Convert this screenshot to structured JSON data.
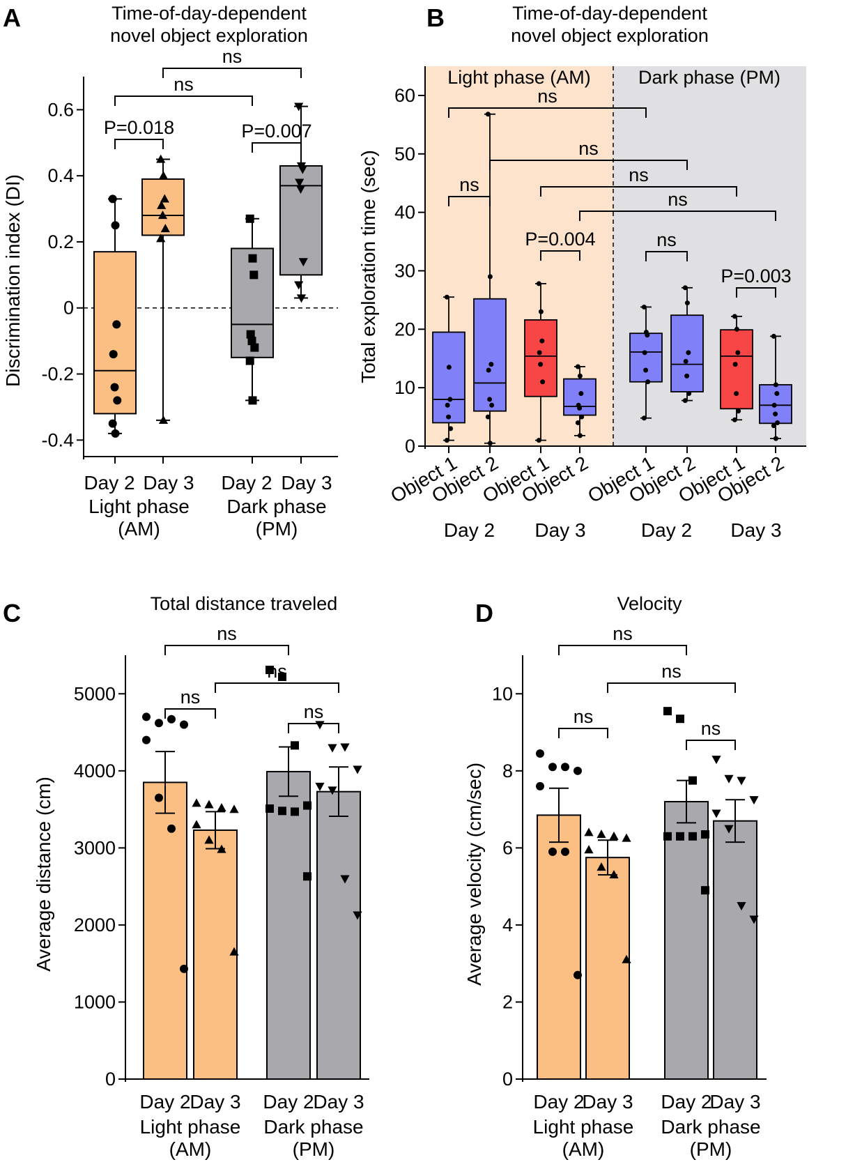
{
  "colors": {
    "light": "#fbbf83",
    "dark": "#a9a9ad",
    "object1_B": "#f84545",
    "object2_B": "#8080f8",
    "bg_light": "#fde3cc",
    "bg_dark": "#e0dfe1"
  },
  "chart_data": [
    {
      "panel": "A",
      "type": "box",
      "title": "Time-of-day-dependent novel object exploration",
      "title_lines": [
        "Time-of-day-dependent",
        "novel object exploration"
      ],
      "ylabel": "Discrimination index (DI)",
      "ylim": [
        -0.45,
        0.7
      ],
      "yticks": [
        -0.4,
        -0.2,
        0,
        0.2,
        0.4,
        0.6
      ],
      "ytick_labels": [
        "-0.4",
        "-0.2",
        "0",
        "0.2",
        "0.4",
        "0.6"
      ],
      "reference_line": 0,
      "categories": [
        "Day 2",
        "Day 3",
        "Day 2",
        "Day 3"
      ],
      "groups": [
        {
          "label_lines": [
            "Light phase",
            "(AM)"
          ]
        },
        {
          "label_lines": [
            "Dark phase",
            "(PM)"
          ]
        }
      ],
      "boxes": [
        {
          "category": "Day 2",
          "group": "Light phase (AM)",
          "min": -0.38,
          "q1": -0.32,
          "median": -0.19,
          "q3": 0.17,
          "max": 0.33,
          "marker": "circle",
          "color": "light",
          "points": [
            0.33,
            0.25,
            -0.05,
            -0.14,
            -0.24,
            -0.28,
            -0.35,
            -0.38
          ]
        },
        {
          "category": "Day 3",
          "group": "Light phase (AM)",
          "min": -0.34,
          "q1": 0.22,
          "median": 0.28,
          "q3": 0.39,
          "max": 0.45,
          "marker": "triangle-up",
          "color": "light",
          "points": [
            0.45,
            0.4,
            0.33,
            0.31,
            0.28,
            0.24,
            0.21,
            -0.34
          ]
        },
        {
          "category": "Day 2",
          "group": "Dark phase (PM)",
          "min": -0.28,
          "q1": -0.15,
          "median": -0.05,
          "q3": 0.18,
          "max": 0.27,
          "marker": "square",
          "color": "dark",
          "points": [
            0.27,
            0.15,
            0.1,
            -0.08,
            -0.1,
            -0.12,
            -0.16,
            -0.28
          ]
        },
        {
          "category": "Day 3",
          "group": "Dark phase (PM)",
          "min": 0.03,
          "q1": 0.1,
          "median": 0.37,
          "q3": 0.43,
          "max": 0.61,
          "marker": "triangle-down",
          "color": "dark",
          "points": [
            0.61,
            0.43,
            0.42,
            0.38,
            0.36,
            0.14,
            0.07,
            0.03
          ]
        }
      ],
      "annotations": [
        {
          "from": 0,
          "to": 1,
          "text": "P=0.018"
        },
        {
          "from": 2,
          "to": 3,
          "text": "P=0.007"
        },
        {
          "from": 0,
          "to": 2,
          "text": "ns"
        },
        {
          "from": 1,
          "to": 3,
          "text": "ns"
        }
      ]
    },
    {
      "panel": "B",
      "type": "box",
      "title": "Time-of-day-dependent novel object exploration",
      "title_lines": [
        "Time-of-day-dependent",
        "novel object exploration"
      ],
      "ylabel": "Total exploration time (sec)",
      "ylim": [
        0,
        65
      ],
      "yticks": [
        0,
        10,
        20,
        30,
        40,
        50,
        60
      ],
      "ytick_labels": [
        "0",
        "10",
        "20",
        "30",
        "40",
        "50",
        "60"
      ],
      "categories": [
        "Object 1",
        "Object 2",
        "Object 1",
        "Object 2",
        "Object 1",
        "Object 2",
        "Object 1",
        "Object 2"
      ],
      "day_labels": [
        "Day 2",
        "Day 3",
        "Day 2",
        "Day 3"
      ],
      "phase_labels": [
        "Light phase (AM)",
        "Dark phase (PM)"
      ],
      "boxes": [
        {
          "category": "Object 1",
          "day": "Day 2",
          "phase": "Light phase (AM)",
          "min": 1,
          "q1": 4,
          "median": 8,
          "q3": 19.5,
          "max": 25.5,
          "color": "object2_B",
          "points": [
            25.5,
            13.5,
            8,
            7,
            5,
            3,
            1
          ]
        },
        {
          "category": "Object 2",
          "day": "Day 2",
          "phase": "Light phase (AM)",
          "min": 0.5,
          "q1": 6,
          "median": 10.8,
          "q3": 25.2,
          "max": 56.8,
          "color": "object2_B",
          "points": [
            56.8,
            29,
            14,
            13,
            8,
            7,
            5,
            0.5
          ]
        },
        {
          "category": "Object 1",
          "day": "Day 3",
          "phase": "Light phase (AM)",
          "min": 1,
          "q1": 8.5,
          "median": 15.4,
          "q3": 21.6,
          "max": 27.8,
          "color": "object1_B",
          "points": [
            27.8,
            23,
            18,
            16,
            14,
            11,
            1
          ]
        },
        {
          "category": "Object 2",
          "day": "Day 3",
          "phase": "Light phase (AM)",
          "min": 1.8,
          "q1": 5.3,
          "median": 6.8,
          "q3": 11.5,
          "max": 13.6,
          "color": "object2_B",
          "points": [
            13.6,
            12,
            9,
            7,
            6.5,
            5,
            4,
            1.8
          ]
        },
        {
          "category": "Object 1",
          "day": "Day 2",
          "phase": "Dark phase (PM)",
          "min": 4.8,
          "q1": 11,
          "median": 16.1,
          "q3": 19.3,
          "max": 23.8,
          "color": "object2_B",
          "points": [
            23.8,
            19.5,
            19,
            16,
            13,
            11,
            4.8
          ]
        },
        {
          "category": "Object 2",
          "day": "Day 2",
          "phase": "Dark phase (PM)",
          "min": 7.8,
          "q1": 9.3,
          "median": 14,
          "q3": 22.4,
          "max": 27.1,
          "color": "object2_B",
          "points": [
            27.1,
            24.5,
            16,
            14.5,
            12,
            9,
            7.8
          ]
        },
        {
          "category": "Object 1",
          "day": "Day 3",
          "phase": "Dark phase (PM)",
          "min": 4.5,
          "q1": 6.4,
          "median": 15.4,
          "q3": 19.9,
          "max": 22.2,
          "color": "object1_B",
          "points": [
            22.2,
            20,
            16,
            14,
            9,
            6,
            4.5
          ]
        },
        {
          "category": "Object 2",
          "day": "Day 3",
          "phase": "Dark phase (PM)",
          "min": 1.3,
          "q1": 3.9,
          "median": 7,
          "q3": 10.5,
          "max": 18.8,
          "color": "object2_B",
          "points": [
            18.8,
            10.5,
            9,
            7,
            5.5,
            4,
            3.5,
            1.3
          ]
        }
      ],
      "annotations": [
        {
          "from": 0,
          "to": 1,
          "text": "ns"
        },
        {
          "from": 2,
          "to": 3,
          "text": "P=0.004"
        },
        {
          "from": 4,
          "to": 5,
          "text": "ns"
        },
        {
          "from": 6,
          "to": 7,
          "text": "P=0.003"
        },
        {
          "from": 0,
          "to": 4,
          "text": "ns"
        },
        {
          "from": 1,
          "to": 5,
          "text": "ns"
        },
        {
          "from": 2,
          "to": 6,
          "text": "ns"
        },
        {
          "from": 3,
          "to": 7,
          "text": "ns"
        }
      ]
    },
    {
      "panel": "C",
      "type": "bar",
      "title": "Total distance traveled",
      "ylabel": "Average distance (cm)",
      "ylim": [
        0,
        5500
      ],
      "yticks": [
        0,
        1000,
        2000,
        3000,
        4000,
        5000
      ],
      "ytick_labels": [
        "0",
        "1000",
        "2000",
        "3000",
        "4000",
        "5000"
      ],
      "categories": [
        "Day 2",
        "Day 3",
        "Day 2",
        "Day 3"
      ],
      "groups": [
        {
          "label_lines": [
            "Light phase",
            "(AM)"
          ]
        },
        {
          "label_lines": [
            "Dark phase",
            "(PM)"
          ]
        }
      ],
      "bars": [
        {
          "category": "Day 2",
          "group": "Light phase (AM)",
          "mean": 3850,
          "sem": 400,
          "marker": "circle",
          "color": "light",
          "points": [
            4700,
            4620,
            4670,
            4600,
            4400,
            3650,
            3250,
            1430
          ]
        },
        {
          "category": "Day 3",
          "group": "Light phase (AM)",
          "mean": 3230,
          "sem": 240,
          "marker": "triangle-up",
          "color": "light",
          "points": [
            3580,
            3560,
            3520,
            3500,
            3300,
            3100,
            2980,
            1650
          ]
        },
        {
          "category": "Day 2",
          "group": "Dark phase (PM)",
          "mean": 3990,
          "sem": 320,
          "marker": "square",
          "color": "dark",
          "points": [
            5310,
            5220,
            4330,
            3550,
            3510,
            3480,
            3470,
            2630
          ]
        },
        {
          "category": "Day 3",
          "group": "Dark phase (PM)",
          "mean": 3730,
          "sem": 320,
          "marker": "triangle-down",
          "color": "dark",
          "points": [
            4600,
            4300,
            4310,
            4020,
            3800,
            3750,
            2600,
            2130
          ]
        }
      ],
      "annotations": [
        {
          "from": 0,
          "to": 1,
          "text": "ns"
        },
        {
          "from": 2,
          "to": 3,
          "text": "ns"
        },
        {
          "from": 1,
          "to": 3,
          "text": "ns"
        },
        {
          "from": 0,
          "to": 2,
          "text": "ns"
        }
      ]
    },
    {
      "panel": "D",
      "type": "bar",
      "title": "Velocity",
      "ylabel": "Average velocity (cm/sec)",
      "ylim": [
        0,
        11
      ],
      "yticks": [
        0,
        2,
        4,
        6,
        8,
        10
      ],
      "ytick_labels": [
        "0",
        "2",
        "4",
        "6",
        "8",
        "10"
      ],
      "categories": [
        "Day 2",
        "Day 3",
        "Day 2",
        "Day 3"
      ],
      "groups": [
        {
          "label_lines": [
            "Light phase",
            "(AM)"
          ]
        },
        {
          "label_lines": [
            "Dark phase",
            "(PM)"
          ]
        }
      ],
      "bars": [
        {
          "category": "Day 2",
          "group": "Light phase (AM)",
          "mean": 6.85,
          "sem": 0.7,
          "marker": "circle",
          "color": "light",
          "points": [
            8.45,
            8.1,
            8.1,
            8.0,
            7.6,
            5.9,
            5.9,
            2.7
          ]
        },
        {
          "category": "Day 3",
          "group": "Light phase (AM)",
          "mean": 5.75,
          "sem": 0.45,
          "marker": "triangle-up",
          "color": "light",
          "points": [
            6.4,
            6.35,
            6.3,
            6.25,
            5.95,
            5.5,
            5.3,
            3.1
          ]
        },
        {
          "category": "Day 2",
          "group": "Dark phase (PM)",
          "mean": 7.2,
          "sem": 0.55,
          "marker": "square",
          "color": "dark",
          "points": [
            9.55,
            9.35,
            7.75,
            6.35,
            6.3,
            6.3,
            6.3,
            4.9
          ]
        },
        {
          "category": "Day 3",
          "group": "Dark phase (PM)",
          "mean": 6.7,
          "sem": 0.55,
          "marker": "triangle-down",
          "color": "dark",
          "points": [
            8.3,
            7.8,
            7.75,
            7.25,
            6.9,
            6.5,
            4.5,
            4.15
          ]
        }
      ],
      "annotations": [
        {
          "from": 0,
          "to": 1,
          "text": "ns"
        },
        {
          "from": 2,
          "to": 3,
          "text": "ns"
        },
        {
          "from": 1,
          "to": 3,
          "text": "ns"
        },
        {
          "from": 0,
          "to": 2,
          "text": "ns"
        }
      ]
    }
  ],
  "panel_letters": [
    "A",
    "B",
    "C",
    "D"
  ]
}
